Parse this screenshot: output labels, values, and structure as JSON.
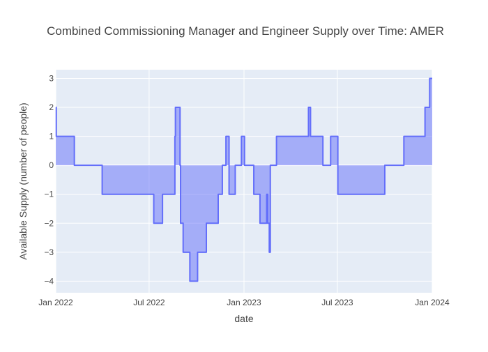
{
  "chart_data": {
    "type": "area",
    "title": "Combined Commissioning Manager and Engineer Supply over Time: AMER",
    "xlabel": "date",
    "ylabel": "Available Supply (number of people)",
    "xlim": [
      "2022-01-01",
      "2024-01-01"
    ],
    "ylim": [
      -4.4,
      3.3
    ],
    "xticks": [
      {
        "value": "2022-01-01",
        "label": "Jan 2022"
      },
      {
        "value": "2022-07-01",
        "label": "Jul 2022"
      },
      {
        "value": "2023-01-01",
        "label": "Jan 2023"
      },
      {
        "value": "2023-07-01",
        "label": "Jul 2023"
      },
      {
        "value": "2024-01-01",
        "label": "Jan 2024"
      }
    ],
    "yticks": [
      {
        "value": 3,
        "label": "3"
      },
      {
        "value": 2,
        "label": "2"
      },
      {
        "value": 1,
        "label": "1"
      },
      {
        "value": 0,
        "label": "0"
      },
      {
        "value": -1,
        "label": "−1"
      },
      {
        "value": -2,
        "label": "−2"
      },
      {
        "value": -3,
        "label": "−3"
      },
      {
        "value": -4,
        "label": "−4"
      }
    ],
    "grid": true,
    "colors": {
      "line": "#636efa",
      "fill": "rgba(99,110,250,0.5)",
      "plot_bg": "#e5ecf6",
      "grid": "#ffffff",
      "text": "#444444"
    },
    "series": [
      {
        "x": [
          "2022-01-01",
          "2022-01-02",
          "2022-01-03",
          "2022-02-05",
          "2022-02-06",
          "2022-03-31",
          "2022-04-01",
          "2022-07-09",
          "2022-07-10",
          "2022-07-26",
          "2022-07-27",
          "2022-08-19",
          "2022-08-20",
          "2022-08-21",
          "2022-08-22",
          "2022-08-30",
          "2022-08-31",
          "2022-09-04",
          "2022-09-05",
          "2022-09-17",
          "2022-09-18",
          "2022-10-02",
          "2022-10-03",
          "2022-10-19",
          "2022-10-20",
          "2022-11-11",
          "2022-11-12",
          "2022-11-19",
          "2022-11-20",
          "2022-11-26",
          "2022-11-27",
          "2022-12-02",
          "2022-12-03",
          "2022-12-14",
          "2022-12-15",
          "2022-12-26",
          "2022-12-27",
          "2023-01-01",
          "2023-01-02",
          "2023-01-19",
          "2023-01-20",
          "2023-01-31",
          "2023-02-01",
          "2023-02-13",
          "2023-02-14",
          "2023-02-15",
          "2023-02-16",
          "2023-02-18",
          "2023-02-19",
          "2023-02-20",
          "2023-02-21",
          "2023-03-04",
          "2023-03-05",
          "2023-04-05",
          "2023-04-06",
          "2023-05-05",
          "2023-05-06",
          "2023-05-09",
          "2023-05-10",
          "2023-06-02",
          "2023-06-03",
          "2023-06-17",
          "2023-06-18",
          "2023-07-01",
          "2023-07-02",
          "2023-09-30",
          "2023-10-01",
          "2023-11-06",
          "2023-11-07",
          "2023-12-17",
          "2023-12-18",
          "2023-12-26",
          "2023-12-27",
          "2024-01-01"
        ],
        "y": [
          2,
          1,
          1,
          1,
          0,
          0,
          -1,
          -1,
          -2,
          -2,
          -1,
          -1,
          1,
          2,
          2,
          0,
          -2,
          -2,
          -3,
          -3,
          -4,
          -4,
          -3,
          -3,
          -2,
          -2,
          -1,
          -1,
          0,
          0,
          1,
          1,
          -1,
          -1,
          0,
          0,
          1,
          1,
          0,
          0,
          -1,
          -1,
          -2,
          -2,
          -1,
          -1,
          -2,
          -2,
          -3,
          -3,
          0,
          0,
          1,
          1,
          1,
          1,
          2,
          2,
          1,
          1,
          0,
          0,
          1,
          1,
          -1,
          -1,
          0,
          0,
          1,
          1,
          2,
          2,
          3,
          3
        ],
        "shape": "step-after",
        "fill": "tozeroy"
      }
    ]
  }
}
